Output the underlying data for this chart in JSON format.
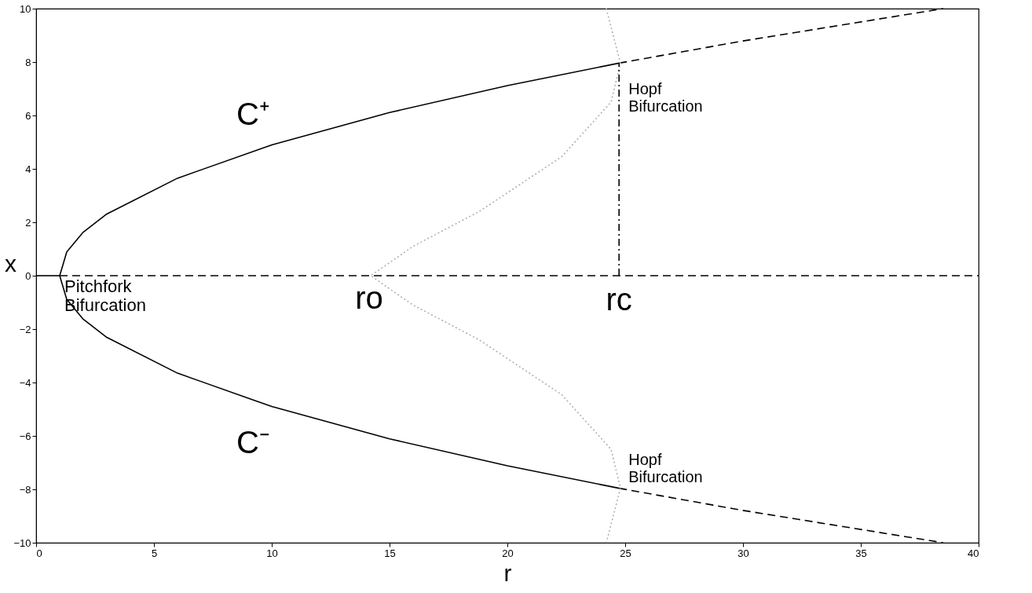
{
  "chart_data": {
    "type": "line",
    "xlabel": "r",
    "ylabel": "x",
    "xlim": [
      0,
      40
    ],
    "ylim": [
      -10,
      10
    ],
    "xticks": [
      0,
      5,
      10,
      15,
      20,
      25,
      30,
      35,
      40
    ],
    "yticks": [
      -10,
      -8,
      -6,
      -4,
      -2,
      0,
      2,
      4,
      6,
      8,
      10
    ],
    "grid": false,
    "marker": "none",
    "series": [
      {
        "color": "#000000",
        "line_style": "solid",
        "x": [
          24.74,
          20,
          15,
          10,
          6,
          3,
          2,
          1.3,
          1,
          1.3,
          2,
          3,
          6,
          10,
          15,
          20,
          24.74
        ],
        "values": [
          7.96,
          7.12,
          6.11,
          4.9,
          3.65,
          2.31,
          1.63,
          0.89,
          0,
          -0.89,
          -1.63,
          -2.31,
          -3.65,
          -4.9,
          -6.11,
          -7.12,
          -7.96
        ]
      },
      {
        "color": "#000000",
        "line_style": "dashed",
        "x": [
          24.74,
          30,
          38.5
        ],
        "values": [
          7.96,
          8.79,
          10
        ]
      },
      {
        "color": "#000000",
        "line_style": "dashed",
        "x": [
          24.74,
          30,
          38.5
        ],
        "values": [
          -7.96,
          -8.79,
          -10
        ]
      },
      {
        "color": "#000000",
        "line_style": "solid",
        "x": [
          0,
          1
        ],
        "values": [
          0,
          0
        ]
      },
      {
        "color": "#000000",
        "line_style": "dashed",
        "x": [
          1,
          40
        ],
        "values": [
          0,
          0
        ]
      },
      {
        "color": "#b0b0b0",
        "line_style": "dotted",
        "x": [
          24.2,
          24.8,
          24.4,
          22.3,
          18.8,
          16,
          14.2,
          16,
          18.8,
          22.3,
          24.4,
          24.8,
          24.2
        ],
        "values": [
          10,
          7.95,
          6.5,
          4.45,
          2.4,
          1.1,
          0,
          -1.1,
          -2.4,
          -4.45,
          -6.5,
          -7.95,
          -10
        ]
      },
      {
        "color": "#000000",
        "line_style": "dashdot",
        "x": [
          24.74,
          24.74
        ],
        "values": [
          0,
          7.96
        ]
      }
    ],
    "annotations": [
      {
        "text": "Pitchfork\nBifurcation",
        "x": 1,
        "y": 0
      },
      {
        "text": "Hopf\nBifurcation",
        "x": 24.74,
        "y": 7.96
      },
      {
        "text": "Hopf\nBifurcation",
        "x": 24.74,
        "y": -7.96
      },
      "C⁺",
      "C⁻",
      {
        "text": "ro",
        "x": 14.2,
        "y": 0
      },
      {
        "text": "rc",
        "x": 24.74,
        "y": 0
      }
    ]
  }
}
